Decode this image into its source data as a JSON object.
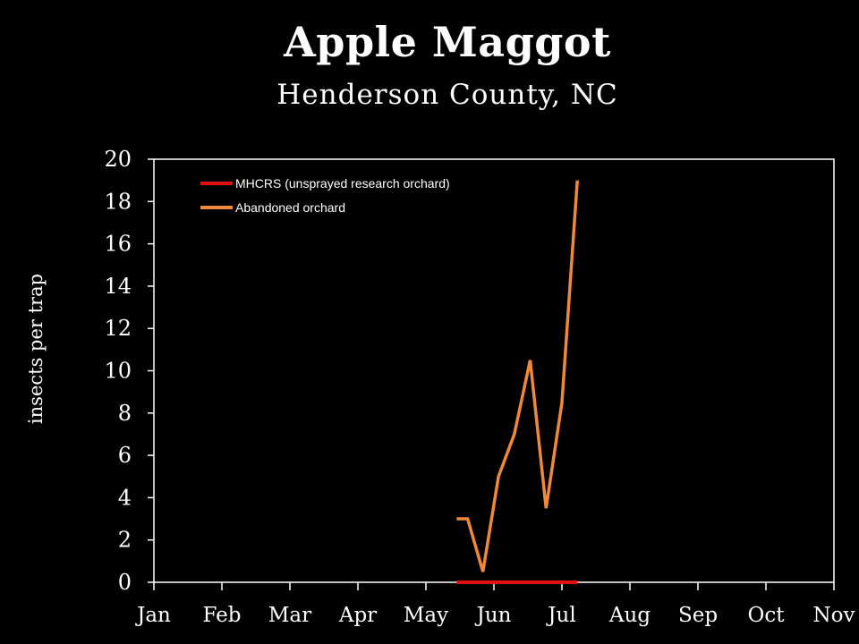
{
  "chart_data": {
    "type": "line",
    "title": "Apple Maggot",
    "subtitle": "Henderson County, NC",
    "xlabel": "",
    "ylabel": "insects per trap",
    "months": [
      "Jan",
      "Feb",
      "Mar",
      "Apr",
      "May",
      "Jun",
      "Jul",
      "Aug",
      "Sep",
      "Oct",
      "Nov"
    ],
    "ylim": [
      0,
      20
    ],
    "yticks": [
      "0",
      "2",
      "4",
      "6",
      "8",
      "10",
      "12",
      "14",
      "16",
      "18",
      "20"
    ],
    "grid": false,
    "legend_position": "top-left",
    "series": [
      {
        "name": "MHCRS (unsprayed research orchard)",
        "color": "#e01010",
        "x": [
          "May 15",
          "May 20",
          "May 27",
          "Jun 3",
          "Jun 10",
          "Jun 17",
          "Jun 24",
          "Jul 1",
          "Jul 8"
        ],
        "values": [
          0,
          0,
          0,
          0,
          0,
          0,
          0,
          0,
          0
        ]
      },
      {
        "name": "Abandoned orchard",
        "color": "#f0883a",
        "x": [
          "May 15",
          "May 20",
          "May 27",
          "Jun 3",
          "Jun 10",
          "Jun 17",
          "Jun 24",
          "Jul 1",
          "Jul 8"
        ],
        "values": [
          3,
          3,
          0.5,
          5,
          7,
          10.5,
          3.5,
          8.5,
          19
        ]
      }
    ]
  }
}
